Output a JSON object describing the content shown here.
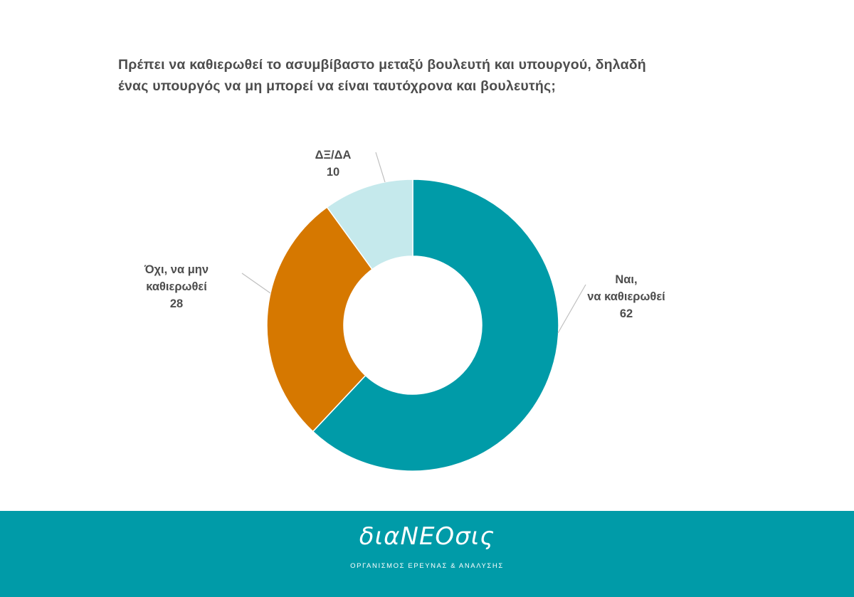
{
  "header": {
    "title_line1": "Πρέπει να καθιερωθεί το ασυμβίβαστο μεταξύ βουλευτή και υπουργού, δηλαδή",
    "title_line2": "ένας υπουργός να μη μπορεί να είναι ταυτόχρονα και βουλευτής;"
  },
  "chart_data": {
    "type": "pie",
    "donut": true,
    "slices": [
      {
        "label_lines": [
          "Ναι,",
          "να καθιερωθεί"
        ],
        "value": 62,
        "value_label": "62",
        "color": "#009ba8"
      },
      {
        "label_lines": [
          "Όχι, να μην",
          "καθιερωθεί"
        ],
        "value": 28,
        "value_label": "28",
        "color": "#d67800"
      },
      {
        "label_lines": [
          "ΔΞ/ΔΑ"
        ],
        "value": 10,
        "value_label": "10",
        "color": "#c5e9ec"
      }
    ],
    "start": "12 o'clock",
    "direction": "clockwise"
  },
  "footer": {
    "logo_text": "διαΝΕΟσις",
    "logo_subtitle": "ΟΡΓΑΝΙΣΜΟΣ ΕΡΕΥΝΑΣ & ΑΝΑΛΥΣΗΣ",
    "background": "#009ba8"
  }
}
